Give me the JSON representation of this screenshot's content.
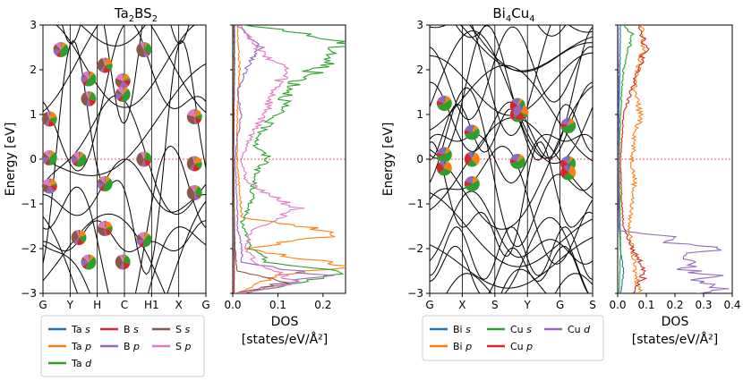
{
  "chart_data": [
    {
      "type": "line",
      "title": "Ta2BS2",
      "title_main": "Ta",
      "title_sub1": "2",
      "title_mid": "BS",
      "title_sub2": "2",
      "panel": "band structure",
      "ylabel": "Energy [eV]",
      "ylim": [
        -3,
        3
      ],
      "yticks": [
        "-3",
        "-2",
        "-1",
        "0",
        "1",
        "2",
        "3"
      ],
      "kpath": [
        "G",
        "Y",
        "H",
        "C",
        "H1",
        "X",
        "G"
      ],
      "fermi_level": 0,
      "pie_markers": [
        {
          "k": 0.11,
          "e": 2.45
        },
        {
          "k": 0.28,
          "e": 1.8
        },
        {
          "k": 0.28,
          "e": 1.35
        },
        {
          "k": 0.38,
          "e": 2.1
        },
        {
          "k": 0.49,
          "e": 1.75
        },
        {
          "k": 0.49,
          "e": 1.45
        },
        {
          "k": 0.62,
          "e": 2.45
        },
        {
          "k": 0.04,
          "e": 0.9
        },
        {
          "k": 0.93,
          "e": 0.95
        },
        {
          "k": 0.04,
          "e": 0.03
        },
        {
          "k": 0.22,
          "e": 0.0
        },
        {
          "k": 0.62,
          "e": 0.0
        },
        {
          "k": 0.93,
          "e": -0.1
        },
        {
          "k": 0.04,
          "e": -0.6
        },
        {
          "k": 0.38,
          "e": -0.55
        },
        {
          "k": 0.93,
          "e": -0.75
        },
        {
          "k": 0.22,
          "e": -1.75
        },
        {
          "k": 0.38,
          "e": -1.55
        },
        {
          "k": 0.62,
          "e": -1.8
        },
        {
          "k": 0.28,
          "e": -2.3
        },
        {
          "k": 0.49,
          "e": -2.3
        }
      ]
    },
    {
      "type": "line",
      "panel": "DOS",
      "xlabel_line1": "DOS",
      "xlabel_line2": "[states/eV/Å²]",
      "xlim": [
        0,
        0.25
      ],
      "xticks": [
        "0.0",
        "0.1",
        "0.2"
      ],
      "ylim": [
        -3,
        3
      ],
      "series": [
        {
          "name": "Ta s",
          "color": "#1f77b4",
          "e": [
            -3,
            -2,
            -1,
            0,
            1,
            2,
            3
          ],
          "dos": [
            0.003,
            0.003,
            0.003,
            0.002,
            0.003,
            0.004,
            0.004
          ]
        },
        {
          "name": "Ta p",
          "color": "#ff7f0e",
          "e": [
            -3,
            -2.6,
            -2.4,
            -2,
            -1.65,
            -1.3,
            0,
            1,
            2,
            3
          ],
          "dos": [
            0.01,
            0.1,
            0.25,
            0.03,
            0.25,
            0.02,
            0.01,
            0.01,
            0.015,
            0.01
          ]
        },
        {
          "name": "Ta d",
          "color": "#2ca02c",
          "e": [
            -3,
            -2.7,
            -2.55,
            -2.3,
            -2,
            -1.7,
            -1.4,
            -1,
            -0.3,
            0,
            0.3,
            0.7,
            1.2,
            1.7,
            2.1,
            2.6,
            2.9,
            3
          ],
          "dos": [
            0.02,
            0.18,
            0.25,
            0.08,
            0.04,
            0.03,
            0.02,
            0.04,
            0.05,
            0.08,
            0.05,
            0.07,
            0.11,
            0.14,
            0.2,
            0.25,
            0.11,
            0.02
          ]
        },
        {
          "name": "B s",
          "color": "#d62728",
          "e": [
            -3,
            -2,
            -1,
            0,
            1,
            2,
            3
          ],
          "dos": [
            0.003,
            0.004,
            0.003,
            0.002,
            0.002,
            0.003,
            0.003
          ]
        },
        {
          "name": "B p",
          "color": "#9467bd",
          "e": [
            -3,
            -2.6,
            -2.3,
            -2,
            -1.5,
            -1,
            0,
            0.5,
            1,
            1.5,
            2,
            2.5,
            3
          ],
          "dos": [
            0.02,
            0.2,
            0.02,
            0.02,
            0.01,
            0.01,
            0.005,
            0.01,
            0.02,
            0.01,
            0.03,
            0.06,
            0.01
          ]
        },
        {
          "name": "S s",
          "color": "#8c564b",
          "e": [
            -3,
            -2.75,
            -2.5,
            -2,
            -1,
            0,
            1,
            2,
            3
          ],
          "dos": [
            0.005,
            0.12,
            0.01,
            0.005,
            0.003,
            0.002,
            0.003,
            0.003,
            0.003
          ]
        },
        {
          "name": "S p",
          "color": "#e377c2",
          "e": [
            -3,
            -2.8,
            -2.6,
            -2.3,
            -2,
            -1.6,
            -1.1,
            -0.5,
            0,
            0.5,
            1,
            1.5,
            2,
            2.5,
            3
          ],
          "dos": [
            0.01,
            0.14,
            0.12,
            0.05,
            0.03,
            0.04,
            0.14,
            0.03,
            0.02,
            0.04,
            0.07,
            0.09,
            0.12,
            0.05,
            0.02
          ]
        }
      ]
    },
    {
      "type": "line",
      "title": "Bi4Cu4",
      "title_main": "Bi",
      "title_sub1": "4",
      "title_mid": "Cu",
      "title_sub2": "4",
      "panel": "band structure",
      "ylabel": "Energy [eV]",
      "ylim": [
        -3,
        3
      ],
      "yticks": [
        "-3",
        "-2",
        "-1",
        "0",
        "1",
        "2",
        "3"
      ],
      "kpath": [
        "G",
        "X",
        "S",
        "Y",
        "G",
        "S"
      ],
      "fermi_level": 0,
      "pie_markers": [
        {
          "k": 0.09,
          "e": 1.25
        },
        {
          "k": 0.26,
          "e": 0.6
        },
        {
          "k": 0.54,
          "e": 1.2
        },
        {
          "k": 0.54,
          "e": 1.0
        },
        {
          "k": 0.56,
          "e": 1.05
        },
        {
          "k": 0.85,
          "e": 0.75
        },
        {
          "k": 0.09,
          "e": 0.1
        },
        {
          "k": 0.09,
          "e": -0.2
        },
        {
          "k": 0.26,
          "e": 0.0
        },
        {
          "k": 0.26,
          "e": -0.55
        },
        {
          "k": 0.54,
          "e": -0.05
        },
        {
          "k": 0.85,
          "e": -0.1
        },
        {
          "k": 0.85,
          "e": -0.3
        }
      ]
    },
    {
      "type": "line",
      "panel": "DOS",
      "xlabel_line1": "DOS",
      "xlabel_line2": "[states/eV/Å²]",
      "xlim": [
        0,
        0.4
      ],
      "xticks": [
        "0.0",
        "0.1",
        "0.2",
        "0.3",
        "0.4"
      ],
      "ylim": [
        -3,
        3
      ],
      "series": [
        {
          "name": "Bi s",
          "color": "#1f77b4",
          "e": [
            -3,
            -2.5,
            -2,
            -1.5,
            -1,
            0,
            1,
            2,
            3
          ],
          "dos": [
            0.01,
            0.02,
            0.01,
            0.005,
            0.005,
            0.003,
            0.005,
            0.008,
            0.01
          ]
        },
        {
          "name": "Bi p",
          "color": "#ff7f0e",
          "e": [
            -3,
            -2.5,
            -2,
            -1.5,
            -1,
            -0.5,
            0,
            0.5,
            1,
            1.5,
            2,
            2.5,
            3
          ],
          "dos": [
            0.08,
            0.06,
            0.05,
            0.04,
            0.05,
            0.06,
            0.05,
            0.06,
            0.08,
            0.06,
            0.07,
            0.09,
            0.08
          ]
        },
        {
          "name": "Cu s",
          "color": "#2ca02c",
          "e": [
            -3,
            -2,
            -1,
            0,
            1,
            2,
            2.5,
            2.8,
            3
          ],
          "dos": [
            0.005,
            0.01,
            0.008,
            0.005,
            0.01,
            0.02,
            0.04,
            0.05,
            0.02
          ]
        },
        {
          "name": "Cu p",
          "color": "#d62728",
          "e": [
            -3,
            -2.5,
            -2,
            -1.5,
            -1,
            0,
            1,
            2,
            2.5,
            3
          ],
          "dos": [
            0.06,
            0.1,
            0.05,
            0.02,
            0.015,
            0.01,
            0.02,
            0.07,
            0.1,
            0.08
          ]
        },
        {
          "name": "Cu d",
          "color": "#9467bd",
          "e": [
            -3,
            -2.9,
            -2.75,
            -2.6,
            -2.45,
            -2.3,
            -2.15,
            -2,
            -1.85,
            -1.75,
            -1.6,
            -1.4,
            -1,
            0,
            1,
            2,
            3
          ],
          "dos": [
            0.25,
            0.38,
            0.28,
            0.33,
            0.22,
            0.3,
            0.2,
            0.38,
            0.15,
            0.2,
            0.01,
            0.005,
            0.003,
            0.002,
            0.003,
            0.003,
            0.002
          ]
        }
      ]
    }
  ],
  "legends": {
    "left": {
      "col1": [
        "Ta s",
        "Ta p",
        "Ta d"
      ],
      "col2": [
        "B s",
        "B p"
      ],
      "col3": [
        "S s",
        "S p"
      ],
      "colors": {
        "Ta s": "#1f77b4",
        "Ta p": "#ff7f0e",
        "Ta d": "#2ca02c",
        "B s": "#d62728",
        "B p": "#9467bd",
        "S s": "#8c564b",
        "S p": "#e377c2"
      }
    },
    "right": {
      "col1": [
        "Bi s",
        "Bi p"
      ],
      "col2": [
        "Cu s",
        "Cu p"
      ],
      "col3": [
        "Cu d"
      ],
      "colors": {
        "Bi s": "#1f77b4",
        "Bi p": "#ff7f0e",
        "Cu s": "#2ca02c",
        "Cu p": "#d62728",
        "Cu d": "#9467bd"
      }
    }
  },
  "colors": {
    "fermi": "#d62728",
    "band": "#000000"
  }
}
